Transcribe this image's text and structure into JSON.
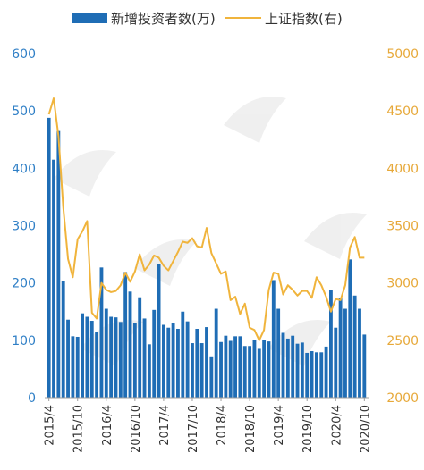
{
  "chart_data": {
    "type": "bar+line",
    "legend": [
      {
        "label": "新增投资者数(万)",
        "color": "#1f6db5",
        "kind": "bar"
      },
      {
        "label": "上证指数(右)",
        "color": "#f0b43c",
        "kind": "line"
      }
    ],
    "left_axis": {
      "ticks": [
        "0",
        "100",
        "200",
        "300",
        "400",
        "500",
        "600"
      ],
      "ylim": [
        0,
        600
      ]
    },
    "right_axis": {
      "ticks": [
        "2000",
        "2500",
        "3000",
        "3500",
        "4000",
        "4500",
        "5000"
      ],
      "ylim": [
        2000,
        5000
      ]
    },
    "x_tick_labels": [
      "2015/4",
      "2015/10",
      "2016/4",
      "2016/10",
      "2017/4",
      "2017/10",
      "2018/4",
      "2018/10",
      "2019/4",
      "2019/10",
      "2020/4",
      "2020/10"
    ],
    "categories": [
      "2015/4",
      "2015/5",
      "2015/6",
      "2015/7",
      "2015/8",
      "2015/9",
      "2015/10",
      "2015/11",
      "2015/12",
      "2016/1",
      "2016/2",
      "2016/3",
      "2016/4",
      "2016/5",
      "2016/6",
      "2016/7",
      "2016/8",
      "2016/9",
      "2016/10",
      "2016/11",
      "2016/12",
      "2017/1",
      "2017/2",
      "2017/3",
      "2017/4",
      "2017/5",
      "2017/6",
      "2017/7",
      "2017/8",
      "2017/9",
      "2017/10",
      "2017/11",
      "2017/12",
      "2018/1",
      "2018/2",
      "2018/3",
      "2018/4",
      "2018/5",
      "2018/6",
      "2018/7",
      "2018/8",
      "2018/9",
      "2018/10",
      "2018/11",
      "2018/12",
      "2019/1",
      "2019/2",
      "2019/3",
      "2019/4",
      "2019/5",
      "2019/6",
      "2019/7",
      "2019/8",
      "2019/9",
      "2019/10",
      "2019/11",
      "2019/12",
      "2020/1",
      "2020/2",
      "2020/3",
      "2020/4",
      "2020/5",
      "2020/6",
      "2020/7",
      "2020/8",
      "2020/9",
      "2020/10"
    ],
    "series": [
      {
        "name": "新增投资者数(万)",
        "type": "bar",
        "axis": "left",
        "values": [
          488,
          415,
          465,
          204,
          136,
          107,
          106,
          147,
          141,
          134,
          115,
          227,
          155,
          141,
          140,
          132,
          219,
          185,
          130,
          175,
          138,
          93,
          153,
          233,
          127,
          122,
          130,
          120,
          150,
          133,
          95,
          120,
          95,
          123,
          72,
          155,
          97,
          108,
          99,
          107,
          107,
          90,
          90,
          101,
          85,
          100,
          98,
          205,
          155,
          113,
          103,
          108,
          94,
          96,
          78,
          81,
          79,
          79,
          89,
          187,
          122,
          173,
          155,
          241,
          178,
          155,
          110
        ]
      },
      {
        "name": "上证指数(右)",
        "type": "line",
        "axis": "right",
        "values": [
          4470,
          4610,
          4280,
          3660,
          3210,
          3050,
          3380,
          3450,
          3540,
          2740,
          2690,
          3000,
          2940,
          2920,
          2930,
          2980,
          3090,
          3010,
          3100,
          3250,
          3110,
          3160,
          3240,
          3220,
          3150,
          3110,
          3190,
          3270,
          3360,
          3350,
          3390,
          3320,
          3310,
          3480,
          3260,
          3170,
          3080,
          3100,
          2850,
          2880,
          2730,
          2820,
          2610,
          2590,
          2500,
          2590,
          2940,
          3090,
          3080,
          2900,
          2980,
          2940,
          2890,
          2930,
          2930,
          2870,
          3050,
          2980,
          2880,
          2750,
          2860,
          2850,
          2980,
          3310,
          3400,
          3220,
          3220
        ]
      }
    ]
  }
}
